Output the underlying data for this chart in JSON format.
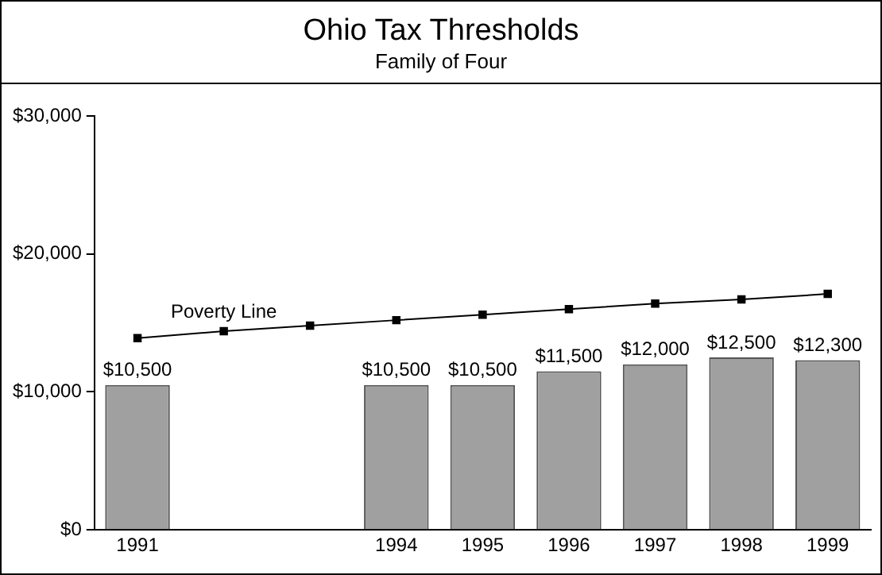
{
  "chart_data": {
    "type": "bar",
    "title": "Ohio Tax Thresholds",
    "subtitle": "Family of Four",
    "categories": [
      "1991",
      null,
      null,
      "1994",
      "1995",
      "1996",
      "1997",
      "1998",
      "1999"
    ],
    "series": [
      {
        "color": "#a0a0a0",
        "values": [
          10500,
          null,
          null,
          10500,
          10500,
          11500,
          12000,
          12500,
          12300
        ],
        "value_labels": [
          "$10,500",
          null,
          null,
          "$10,500",
          "$10,500",
          "$11,500",
          "$12,000",
          "$12,500",
          "$12,300"
        ]
      },
      {
        "type": "line",
        "name": "Poverty Line",
        "color": "#000000",
        "marker": "square",
        "values": [
          13900,
          14400,
          14800,
          15200,
          15600,
          16000,
          16400,
          16700,
          17100
        ]
      }
    ],
    "ylim": [
      0,
      30000
    ],
    "yticks": [
      {
        "value": 0,
        "label": "$0"
      },
      {
        "value": 10000,
        "label": "$10,000"
      },
      {
        "value": 20000,
        "label": "$20,000"
      },
      {
        "value": 30000,
        "label": "$30,000"
      }
    ],
    "grid": false,
    "legend": false
  }
}
